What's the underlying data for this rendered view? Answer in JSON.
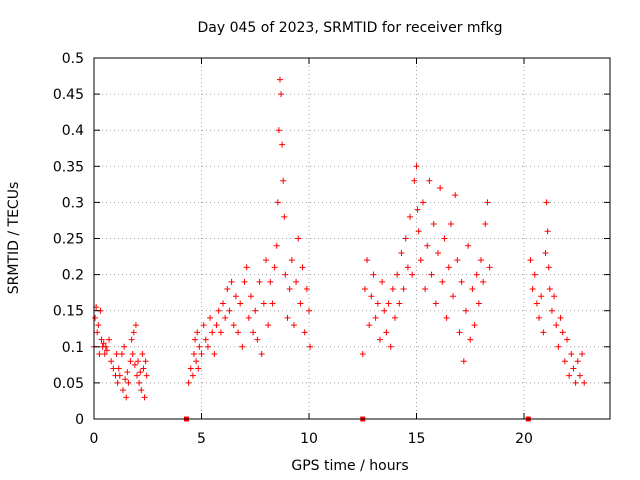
{
  "chart_data": {
    "type": "scatter",
    "title": "Day 045 of 2023, SRMTID for receiver mfkg",
    "xlabel": "GPS time / hours",
    "ylabel": "SRMTID / TECUs",
    "xlim": [
      0,
      24
    ],
    "ylim": [
      0,
      0.5
    ],
    "x_ticks": [
      0,
      5,
      10,
      15,
      20
    ],
    "x_tick_labels": [
      "0",
      "5",
      "10",
      "15",
      "20"
    ],
    "y_ticks": [
      0,
      0.05,
      0.1,
      0.15,
      0.2,
      0.25,
      0.3,
      0.35,
      0.4,
      0.45,
      0.5
    ],
    "y_tick_labels": [
      "0",
      "0.05",
      "0.1",
      "0.15",
      "0.2",
      "0.25",
      "0.3",
      "0.35",
      "0.4",
      "0.45",
      "0.5"
    ],
    "grid": true,
    "marker": "+",
    "color": "#ff0000",
    "series": [
      {
        "name": "SRMTID",
        "points": [
          [
            0.0,
            0.1
          ],
          [
            0.05,
            0.14
          ],
          [
            0.1,
            0.155
          ],
          [
            0.15,
            0.12
          ],
          [
            0.2,
            0.13
          ],
          [
            0.25,
            0.09
          ],
          [
            0.3,
            0.15
          ],
          [
            0.35,
            0.11
          ],
          [
            0.4,
            0.1
          ],
          [
            0.45,
            0.105
          ],
          [
            0.5,
            0.09
          ],
          [
            0.55,
            0.1
          ],
          [
            0.6,
            0.095
          ],
          [
            0.7,
            0.11
          ],
          [
            0.8,
            0.08
          ],
          [
            0.9,
            0.07
          ],
          [
            1.0,
            0.06
          ],
          [
            1.05,
            0.09
          ],
          [
            1.1,
            0.05
          ],
          [
            1.15,
            0.07
          ],
          [
            1.2,
            0.06
          ],
          [
            1.3,
            0.09
          ],
          [
            1.35,
            0.04
          ],
          [
            1.4,
            0.1
          ],
          [
            1.45,
            0.055
          ],
          [
            1.5,
            0.03
          ],
          [
            1.55,
            0.065
          ],
          [
            1.6,
            0.05
          ],
          [
            1.7,
            0.08
          ],
          [
            1.75,
            0.11
          ],
          [
            1.8,
            0.09
          ],
          [
            1.85,
            0.12
          ],
          [
            1.9,
            0.075
          ],
          [
            1.95,
            0.13
          ],
          [
            2.0,
            0.06
          ],
          [
            2.05,
            0.08
          ],
          [
            2.1,
            0.05
          ],
          [
            2.15,
            0.065
          ],
          [
            2.2,
            0.04
          ],
          [
            2.25,
            0.09
          ],
          [
            2.3,
            0.07
          ],
          [
            2.35,
            0.03
          ],
          [
            2.4,
            0.08
          ],
          [
            2.45,
            0.06
          ],
          [
            4.4,
            0.05
          ],
          [
            4.5,
            0.07
          ],
          [
            4.6,
            0.06
          ],
          [
            4.65,
            0.09
          ],
          [
            4.7,
            0.11
          ],
          [
            4.75,
            0.08
          ],
          [
            4.8,
            0.12
          ],
          [
            4.85,
            0.07
          ],
          [
            4.9,
            0.1
          ],
          [
            5.0,
            0.09
          ],
          [
            5.1,
            0.13
          ],
          [
            5.2,
            0.11
          ],
          [
            5.3,
            0.1
          ],
          [
            5.4,
            0.14
          ],
          [
            5.5,
            0.12
          ],
          [
            5.6,
            0.09
          ],
          [
            5.7,
            0.13
          ],
          [
            5.8,
            0.15
          ],
          [
            5.9,
            0.12
          ],
          [
            6.0,
            0.16
          ],
          [
            6.1,
            0.14
          ],
          [
            6.2,
            0.18
          ],
          [
            6.3,
            0.15
          ],
          [
            6.4,
            0.19
          ],
          [
            6.5,
            0.13
          ],
          [
            6.6,
            0.17
          ],
          [
            6.7,
            0.12
          ],
          [
            6.8,
            0.16
          ],
          [
            6.9,
            0.1
          ],
          [
            7.0,
            0.19
          ],
          [
            7.1,
            0.21
          ],
          [
            7.2,
            0.14
          ],
          [
            7.3,
            0.17
          ],
          [
            7.4,
            0.12
          ],
          [
            7.5,
            0.15
          ],
          [
            7.6,
            0.11
          ],
          [
            7.7,
            0.19
          ],
          [
            7.8,
            0.09
          ],
          [
            7.9,
            0.16
          ],
          [
            8.0,
            0.22
          ],
          [
            8.1,
            0.13
          ],
          [
            8.2,
            0.19
          ],
          [
            8.3,
            0.16
          ],
          [
            8.4,
            0.21
          ],
          [
            8.5,
            0.24
          ],
          [
            8.55,
            0.3
          ],
          [
            8.6,
            0.4
          ],
          [
            8.65,
            0.47
          ],
          [
            8.7,
            0.45
          ],
          [
            8.75,
            0.38
          ],
          [
            8.8,
            0.33
          ],
          [
            8.85,
            0.28
          ],
          [
            8.9,
            0.2
          ],
          [
            9.0,
            0.14
          ],
          [
            9.1,
            0.18
          ],
          [
            9.2,
            0.22
          ],
          [
            9.3,
            0.13
          ],
          [
            9.4,
            0.19
          ],
          [
            9.5,
            0.25
          ],
          [
            9.6,
            0.16
          ],
          [
            9.7,
            0.21
          ],
          [
            9.8,
            0.12
          ],
          [
            9.9,
            0.18
          ],
          [
            10.0,
            0.15
          ],
          [
            10.05,
            0.1
          ],
          [
            12.5,
            0.09
          ],
          [
            12.6,
            0.18
          ],
          [
            12.7,
            0.22
          ],
          [
            12.8,
            0.13
          ],
          [
            12.9,
            0.17
          ],
          [
            13.0,
            0.2
          ],
          [
            13.1,
            0.14
          ],
          [
            13.2,
            0.16
          ],
          [
            13.3,
            0.11
          ],
          [
            13.4,
            0.19
          ],
          [
            13.5,
            0.15
          ],
          [
            13.6,
            0.12
          ],
          [
            13.7,
            0.16
          ],
          [
            13.8,
            0.1
          ],
          [
            13.9,
            0.18
          ],
          [
            14.0,
            0.14
          ],
          [
            14.1,
            0.2
          ],
          [
            14.2,
            0.16
          ],
          [
            14.3,
            0.23
          ],
          [
            14.4,
            0.18
          ],
          [
            14.5,
            0.25
          ],
          [
            14.6,
            0.21
          ],
          [
            14.7,
            0.28
          ],
          [
            14.8,
            0.2
          ],
          [
            14.9,
            0.33
          ],
          [
            15.0,
            0.35
          ],
          [
            15.05,
            0.29
          ],
          [
            15.1,
            0.26
          ],
          [
            15.2,
            0.22
          ],
          [
            15.3,
            0.3
          ],
          [
            15.4,
            0.18
          ],
          [
            15.5,
            0.24
          ],
          [
            15.6,
            0.33
          ],
          [
            15.7,
            0.2
          ],
          [
            15.8,
            0.27
          ],
          [
            15.9,
            0.16
          ],
          [
            16.0,
            0.23
          ],
          [
            16.1,
            0.32
          ],
          [
            16.2,
            0.19
          ],
          [
            16.3,
            0.25
          ],
          [
            16.4,
            0.14
          ],
          [
            16.5,
            0.21
          ],
          [
            16.6,
            0.27
          ],
          [
            16.7,
            0.17
          ],
          [
            16.8,
            0.31
          ],
          [
            16.9,
            0.22
          ],
          [
            17.0,
            0.12
          ],
          [
            17.1,
            0.19
          ],
          [
            17.2,
            0.08
          ],
          [
            17.3,
            0.15
          ],
          [
            17.4,
            0.24
          ],
          [
            17.5,
            0.11
          ],
          [
            17.6,
            0.18
          ],
          [
            17.7,
            0.13
          ],
          [
            17.8,
            0.2
          ],
          [
            17.9,
            0.16
          ],
          [
            18.0,
            0.22
          ],
          [
            18.1,
            0.19
          ],
          [
            18.2,
            0.27
          ],
          [
            18.3,
            0.3
          ],
          [
            18.4,
            0.21
          ],
          [
            20.3,
            0.22
          ],
          [
            20.4,
            0.18
          ],
          [
            20.5,
            0.2
          ],
          [
            20.6,
            0.16
          ],
          [
            20.7,
            0.14
          ],
          [
            20.8,
            0.17
          ],
          [
            20.9,
            0.12
          ],
          [
            21.0,
            0.23
          ],
          [
            21.05,
            0.3
          ],
          [
            21.1,
            0.26
          ],
          [
            21.15,
            0.21
          ],
          [
            21.2,
            0.18
          ],
          [
            21.3,
            0.15
          ],
          [
            21.4,
            0.17
          ],
          [
            21.5,
            0.13
          ],
          [
            21.6,
            0.1
          ],
          [
            21.7,
            0.14
          ],
          [
            21.8,
            0.12
          ],
          [
            21.9,
            0.08
          ],
          [
            22.0,
            0.11
          ],
          [
            22.1,
            0.06
          ],
          [
            22.2,
            0.09
          ],
          [
            22.3,
            0.07
          ],
          [
            22.4,
            0.05
          ],
          [
            22.5,
            0.08
          ],
          [
            22.6,
            0.06
          ],
          [
            22.7,
            0.09
          ],
          [
            22.8,
            0.05
          ]
        ]
      }
    ],
    "gap_markers": [
      4.3,
      12.5,
      20.2
    ]
  }
}
